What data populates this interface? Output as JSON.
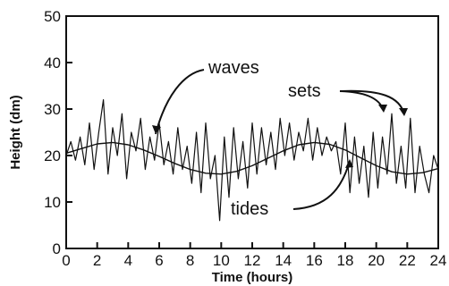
{
  "chart_data": {
    "type": "line",
    "title": "",
    "xlabel": "Time (hours)",
    "ylabel": "Height (dm)",
    "xlim": [
      0,
      24
    ],
    "ylim": [
      0,
      50
    ],
    "x_ticks": [
      0,
      2,
      4,
      6,
      8,
      10,
      12,
      14,
      16,
      18,
      20,
      22,
      24
    ],
    "y_ticks": [
      0,
      10,
      20,
      30,
      40,
      50
    ],
    "grid": false,
    "series": [
      {
        "key": "waves",
        "style": "noisy",
        "x": [
          0,
          0.3,
          0.6,
          0.9,
          1.2,
          1.5,
          1.8,
          2.1,
          2.4,
          2.7,
          3.0,
          3.3,
          3.6,
          3.9,
          4.2,
          4.5,
          4.8,
          5.1,
          5.4,
          5.7,
          6.0,
          6.3,
          6.6,
          6.9,
          7.2,
          7.5,
          7.8,
          8.1,
          8.4,
          8.7,
          9.0,
          9.3,
          9.6,
          9.9,
          10.2,
          10.5,
          10.8,
          11.1,
          11.4,
          11.7,
          12.0,
          12.3,
          12.6,
          12.9,
          13.2,
          13.5,
          13.8,
          14.1,
          14.4,
          14.7,
          15.0,
          15.3,
          15.6,
          15.9,
          16.2,
          16.5,
          16.8,
          17.1,
          17.4,
          17.7,
          18.0,
          18.3,
          18.6,
          18.9,
          19.2,
          19.5,
          19.8,
          20.1,
          20.4,
          20.7,
          21.0,
          21.3,
          21.6,
          21.9,
          22.2,
          22.5,
          22.8,
          23.1,
          23.4,
          23.7,
          24.0
        ],
        "y": [
          20,
          23,
          19,
          24,
          18,
          27,
          17,
          25,
          32,
          16,
          26,
          20,
          29,
          15,
          25,
          21,
          28,
          17,
          24,
          19,
          27,
          18,
          23,
          16,
          26,
          17,
          22,
          14,
          25,
          12,
          27,
          15,
          20,
          6,
          24,
          11,
          26,
          15,
          23,
          13,
          27,
          16,
          26,
          18,
          25,
          17,
          28,
          20,
          27,
          19,
          25,
          21,
          28,
          19,
          26,
          20,
          24,
          21,
          23,
          16,
          27,
          12,
          24,
          14,
          22,
          11,
          25,
          13,
          24,
          16,
          29,
          14,
          22,
          13,
          28,
          12,
          22,
          16,
          12,
          20,
          17
        ]
      },
      {
        "key": "tides",
        "style": "smooth",
        "x": [
          0,
          1,
          2,
          3,
          4,
          5,
          6,
          7,
          8,
          9,
          10,
          11,
          12,
          13,
          14,
          15,
          16,
          17,
          18,
          19,
          20,
          21,
          22,
          23,
          24
        ],
        "y": [
          20.5,
          21.5,
          22.5,
          22.8,
          22.3,
          21.2,
          19.8,
          18.3,
          17.0,
          16.2,
          16.0,
          16.6,
          17.8,
          19.4,
          21.0,
          22.3,
          22.8,
          22.4,
          21.2,
          19.5,
          17.8,
          16.5,
          16.0,
          16.3,
          17.2
        ]
      }
    ],
    "annotations": {
      "waves": "waves",
      "sets": "sets",
      "tides": "tides"
    }
  }
}
